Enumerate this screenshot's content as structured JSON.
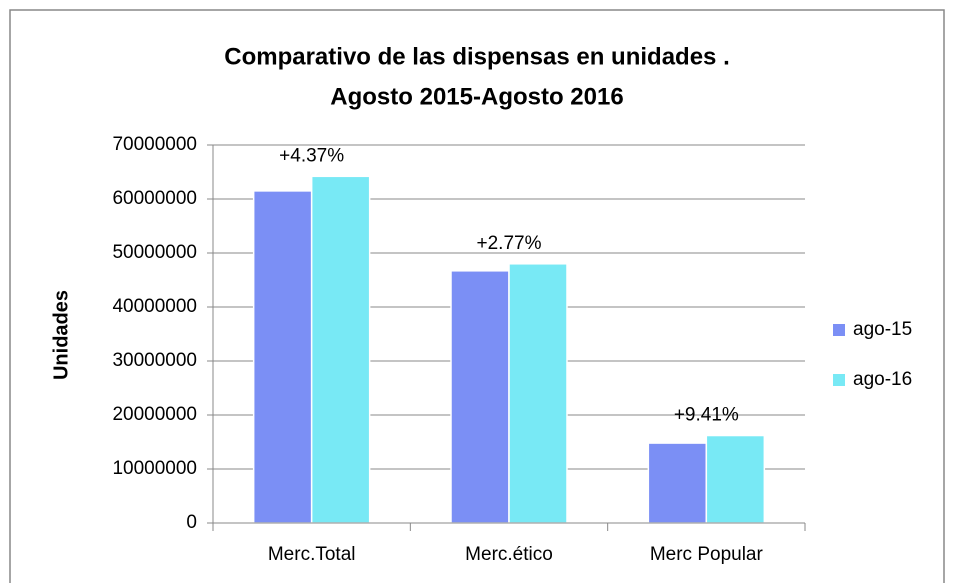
{
  "chart_data": {
    "type": "bar",
    "title": [
      "Comparativo de las dispensas en unidades .",
      "Agosto 2015-Agosto 2016"
    ],
    "y_label": "Unidades",
    "categories": [
      "Merc.Total",
      "Merc.ético",
      "Merc Popular"
    ],
    "series": [
      {
        "name": "ago-15",
        "color": "#7b8ff5",
        "values": [
          61500000,
          46700000,
          14800000
        ]
      },
      {
        "name": "ago-16",
        "color": "#78e9f5",
        "values": [
          64200000,
          48000000,
          16200000
        ]
      }
    ],
    "annotations": [
      "+4.37%",
      "+2.77%",
      "+9.41%"
    ],
    "ylim": [
      0,
      70000000
    ],
    "yticks": [
      0,
      10000000,
      20000000,
      30000000,
      40000000,
      50000000,
      60000000,
      70000000
    ],
    "grid": true,
    "legend": "right"
  }
}
